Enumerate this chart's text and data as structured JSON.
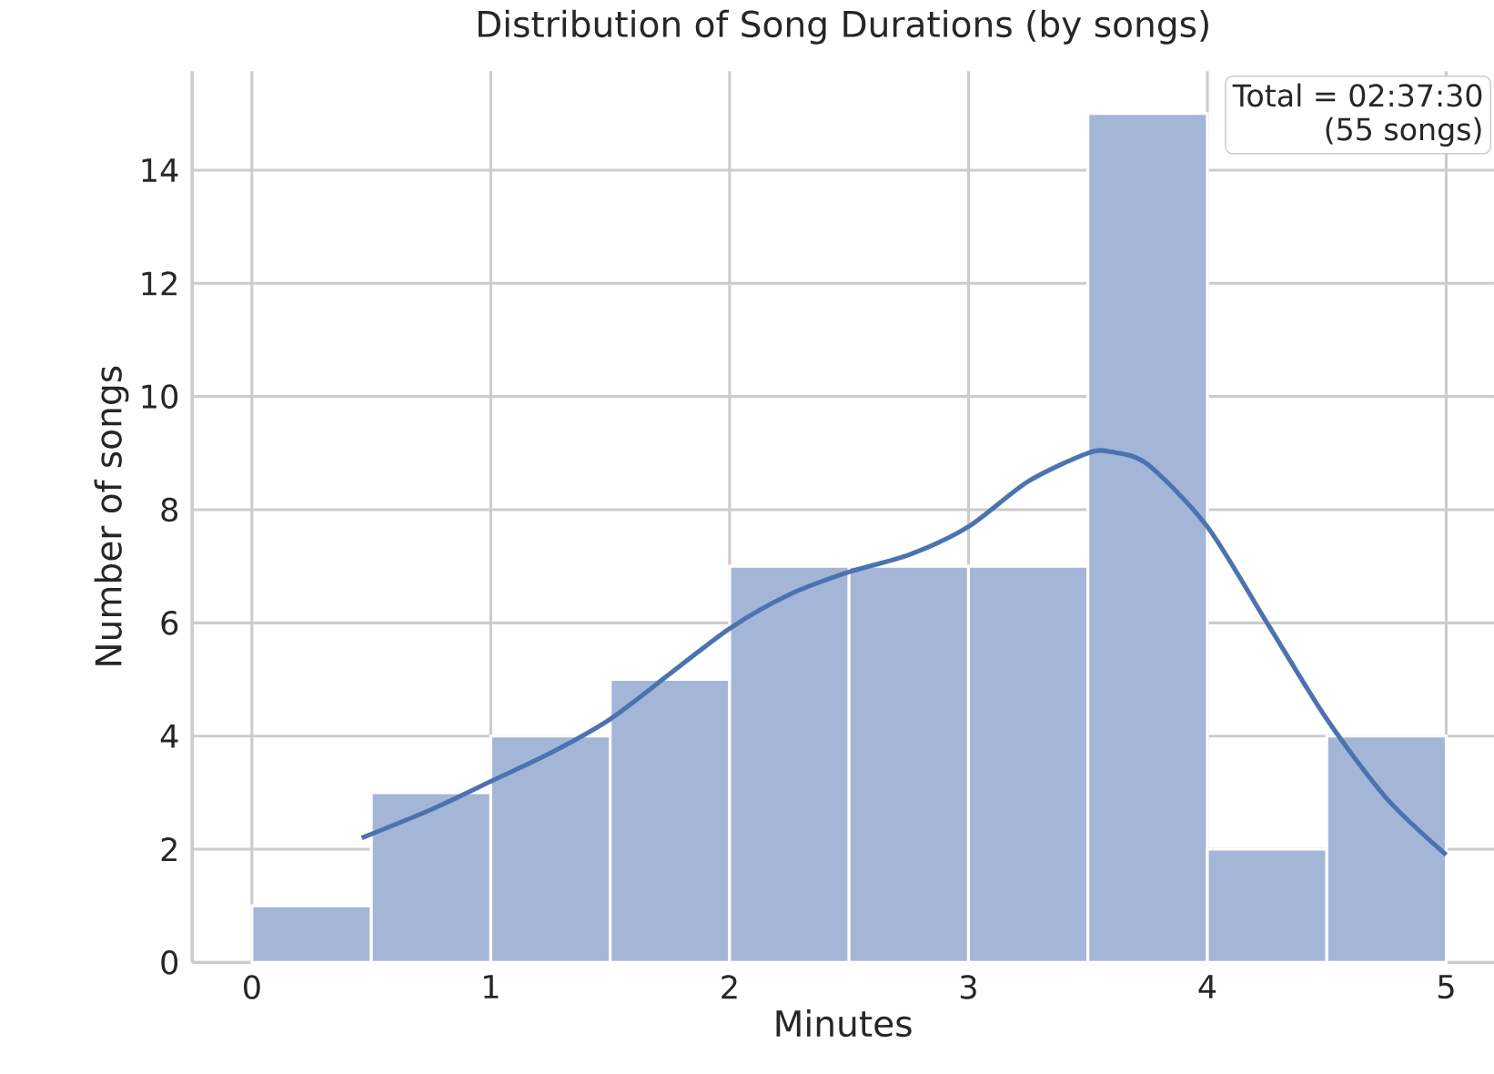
{
  "chart_data": {
    "type": "histogram",
    "title": "Distribution of Song Durations (by songs)",
    "xlabel": "Minutes",
    "ylabel": "Number of songs",
    "bins": [
      0,
      0.5,
      1,
      1.5,
      2,
      2.5,
      3,
      3.5,
      4,
      4.5,
      5
    ],
    "values": [
      1,
      3,
      4,
      5,
      7,
      7,
      7,
      15,
      2,
      4
    ],
    "color": "#a4b6d8",
    "series": [
      {
        "type": "line",
        "color": "#4c72b0",
        "x": [
          0.46,
          0.75,
          1,
          1.25,
          1.5,
          1.75,
          2,
          2.25,
          2.5,
          2.75,
          3,
          3.25,
          3.5,
          3.6,
          3.75,
          4,
          4.25,
          4.5,
          4.75,
          5
        ],
        "values": [
          2.2,
          2.7,
          3.2,
          3.7,
          4.3,
          5.1,
          5.9,
          6.5,
          6.9,
          7.2,
          7.7,
          8.5,
          9.0,
          9.02,
          8.8,
          7.7,
          6.0,
          4.3,
          2.9,
          1.9
        ]
      }
    ],
    "xlim": [
      -0.25,
      5.2
    ],
    "ylim": [
      0,
      15.75
    ],
    "xticks": [
      0,
      1,
      2,
      3,
      4,
      5
    ],
    "yticks": [
      0,
      2,
      4,
      6,
      8,
      10,
      12,
      14
    ],
    "grid": true,
    "annotations": [
      "Total = 02:37:30",
      "(55 songs)"
    ]
  }
}
